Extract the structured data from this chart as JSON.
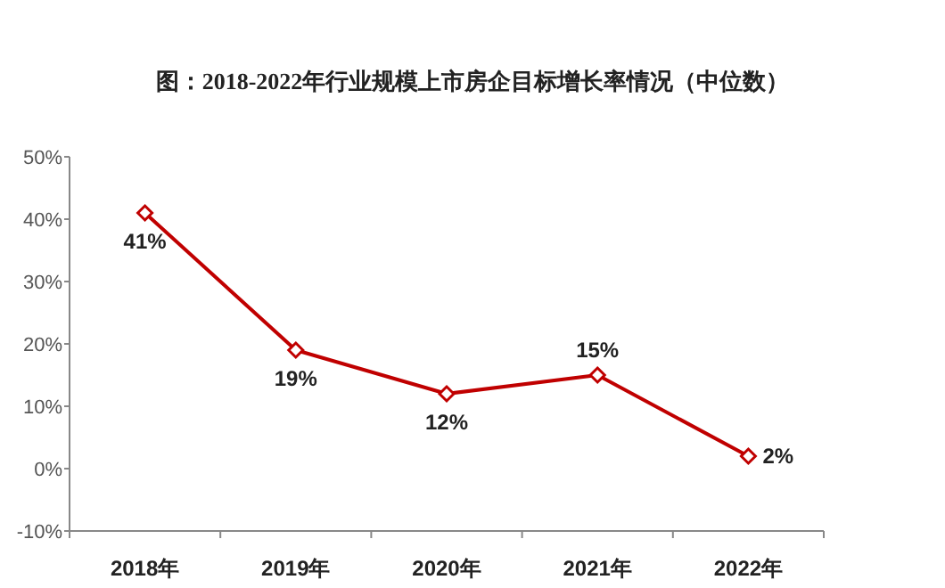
{
  "chart_data": {
    "type": "line",
    "title": "图：2018-2022年行业规模上市房企目标增长率情况（中位数）",
    "categories": [
      "2018年",
      "2019年",
      "2020年",
      "2021年",
      "2022年"
    ],
    "series": [
      {
        "color": "#c00000",
        "values": [
          41,
          19,
          12,
          15,
          2
        ]
      }
    ],
    "value_labels": [
      "41%",
      "19%",
      "12%",
      "15%",
      "2%"
    ],
    "ylim": [
      -10,
      50
    ],
    "yticks": [
      {
        "value": -10,
        "label": "-10%"
      },
      {
        "value": 0,
        "label": "0%"
      },
      {
        "value": 10,
        "label": "10%"
      },
      {
        "value": 20,
        "label": "20%"
      },
      {
        "value": 30,
        "label": "30%"
      },
      {
        "value": 40,
        "label": "40%"
      },
      {
        "value": 50,
        "label": "50%"
      }
    ],
    "grid": false,
    "marker": "diamond",
    "line_style": "solid"
  }
}
